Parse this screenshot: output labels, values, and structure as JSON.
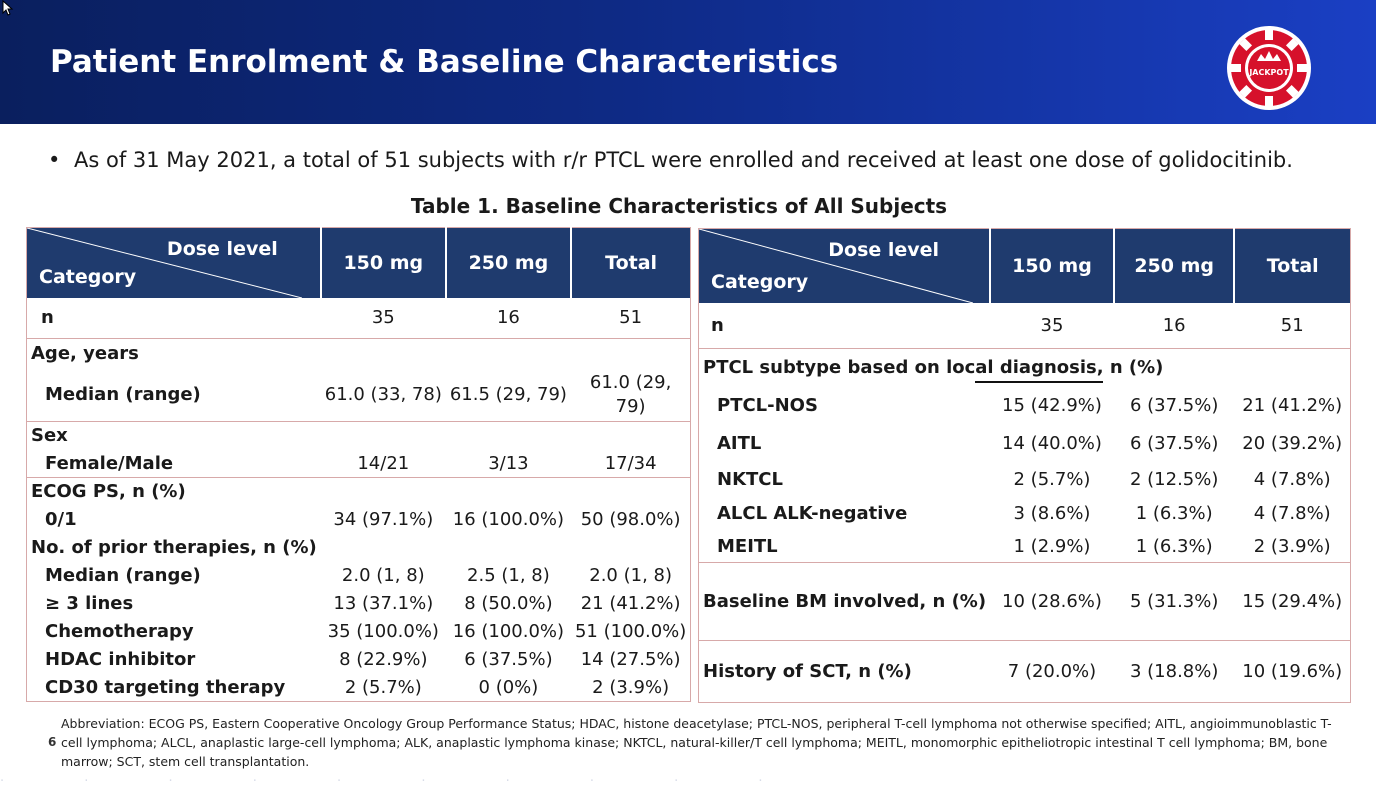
{
  "slide": {
    "title": "Patient Enrolment & Baseline Characteristics",
    "logo_text": "JACKPOT",
    "bullet": "As of 31 May 2021, a total of 51 subjects with r/r PTCL were enrolled and received at least one dose of golidocitinib.",
    "table_title": "Table 1. Baseline Characteristics of All Subjects",
    "slide_number": "6",
    "footnote": "Abbreviation: ECOG PS, Eastern Cooperative Oncology Group Performance Status; HDAC, histone deacetylase; PTCL-NOS, peripheral T-cell lymphoma not otherwise specified; AITL, angioimmunoblastic T-cell lymphoma; ALCL, anaplastic large-cell lymphoma; ALK, anaplastic lymphoma kinase; NKTCL, natural-killer/T cell lymphoma; MEITL, monomorphic epitheliotropic intestinal T cell lymphoma; BM, bone marrow; SCT, stem cell transplantation."
  },
  "colors": {
    "header_dark": "#0a1f5e",
    "header_light": "#1a3fc4",
    "table_head": "#1f3b6e",
    "row_border": "#d7a9a9",
    "logo_red": "#d6112b"
  },
  "header": {
    "dose_level": "Dose level",
    "category": "Category",
    "col1": "150 mg",
    "col2": "250 mg",
    "col3": "Total"
  },
  "left": {
    "n": {
      "label": "n",
      "v1": "35",
      "v2": "16",
      "v3": "51"
    },
    "age": {
      "label": "Age, years",
      "sub": "Median (range)",
      "v1": "61.0 (33, 78)",
      "v2": "61.5 (29, 79)",
      "v3a": "61.0 (29,",
      "v3b": "79)"
    },
    "sex": {
      "label": "Sex",
      "sub": "Female/Male",
      "v1": "14/21",
      "v2": "3/13",
      "v3": "17/34"
    },
    "ecog": {
      "label": "ECOG PS, n (%)",
      "sub": "0/1",
      "v1": "34 (97.1%)",
      "v2": "16 (100.0%)",
      "v3": "50 (98.0%)"
    },
    "prior": {
      "label": "No. of prior therapies, n (%)",
      "rows": [
        {
          "label": "Median (range)",
          "v1": "2.0 (1, 8)",
          "v2": "2.5 (1, 8)",
          "v3": "2.0 (1, 8)"
        },
        {
          "label": "≥ 3 lines",
          "v1": "13 (37.1%)",
          "v2": "8 (50.0%)",
          "v3": "21 (41.2%)"
        },
        {
          "label": "Chemotherapy",
          "v1": "35 (100.0%)",
          "v2": "16 (100.0%)",
          "v3": "51 (100.0%)"
        },
        {
          "label": "HDAC inhibitor",
          "v1": "8 (22.9%)",
          "v2": "6 (37.5%)",
          "v3": "14 (27.5%)"
        },
        {
          "label": "CD30 targeting therapy",
          "v1": "2 (5.7%)",
          "v2": "0 (0%)",
          "v3": "2 (3.9%)"
        }
      ]
    }
  },
  "right": {
    "n": {
      "label": "n",
      "v1": "35",
      "v2": "16",
      "v3": "51"
    },
    "subtype": {
      "label": "PTCL subtype based on local diagnosis, n (%)",
      "rows": [
        {
          "label": "PTCL-NOS",
          "v1": "15 (42.9%)",
          "v2": "6 (37.5%)",
          "v3": "21 (41.2%)"
        },
        {
          "label": "AITL",
          "v1": "14 (40.0%)",
          "v2": "6 (37.5%)",
          "v3": "20 (39.2%)"
        },
        {
          "label": "NKTCL",
          "v1": "2 (5.7%)",
          "v2": "2 (12.5%)",
          "v3": "4 (7.8%)"
        },
        {
          "label": "ALCL ALK-negative",
          "v1": "3 (8.6%)",
          "v2": "1 (6.3%)",
          "v3": "4 (7.8%)"
        },
        {
          "label": "MEITL",
          "v1": "1 (2.9%)",
          "v2": "1 (6.3%)",
          "v3": "2 (3.9%)"
        }
      ]
    },
    "bm": {
      "label": "Baseline BM involved, n (%)",
      "v1": "10 (28.6%)",
      "v2": "5 (31.3%)",
      "v3": "15 (29.4%)"
    },
    "sct": {
      "label": "History of SCT, n (%)",
      "v1": "7 (20.0%)",
      "v2": "3 (18.8%)",
      "v3": "10 (19.6%)"
    }
  }
}
